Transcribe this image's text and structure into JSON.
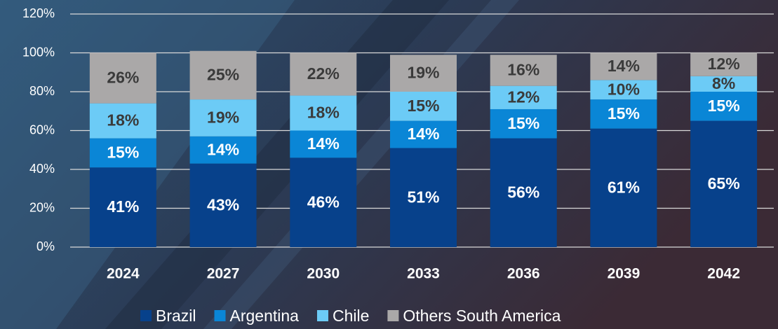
{
  "chart_data": {
    "type": "bar",
    "stacked": true,
    "categories": [
      "2024",
      "2027",
      "2030",
      "2033",
      "2036",
      "2039",
      "2042"
    ],
    "series": [
      {
        "name": "Brazil",
        "color": "#07418b",
        "label_color": "#ffffff",
        "values": [
          41,
          43,
          46,
          51,
          56,
          61,
          65
        ],
        "value_labels": [
          "41%",
          "43%",
          "46%",
          "51%",
          "56%",
          "61%",
          "65%"
        ]
      },
      {
        "name": "Argentina",
        "color": "#0a86d6",
        "label_color": "#ffffff",
        "values": [
          15,
          14,
          14,
          14,
          15,
          15,
          15
        ],
        "value_labels": [
          "15%",
          "14%",
          "14%",
          "14%",
          "15%",
          "15%",
          "15%"
        ]
      },
      {
        "name": "Chile",
        "color": "#6ccbf6",
        "label_color": "#3a3a3a",
        "values": [
          18,
          19,
          18,
          15,
          12,
          10,
          8
        ],
        "value_labels": [
          "18%",
          "19%",
          "18%",
          "15%",
          "12%",
          "10%",
          "8%"
        ]
      },
      {
        "name": "Others South America",
        "color": "#aaa8a8",
        "label_color": "#3a3a3a",
        "values": [
          26,
          25,
          22,
          19,
          16,
          14,
          12
        ],
        "value_labels": [
          "26%",
          "25%",
          "22%",
          "19%",
          "16%",
          "14%",
          "12%"
        ]
      }
    ],
    "ylim": [
      0,
      120
    ],
    "yticks": [
      {
        "value": 0,
        "label": "0%"
      },
      {
        "value": 20,
        "label": "20%"
      },
      {
        "value": 40,
        "label": "40%"
      },
      {
        "value": 60,
        "label": "60%"
      },
      {
        "value": 80,
        "label": "80%"
      },
      {
        "value": 100,
        "label": "100%"
      },
      {
        "value": 120,
        "label": "120%"
      }
    ],
    "grid": true,
    "legend": "bottom"
  }
}
